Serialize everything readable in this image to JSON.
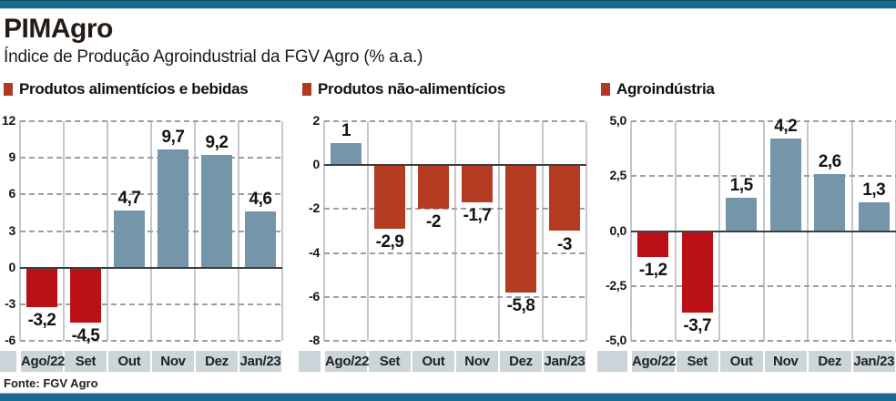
{
  "page": {
    "title": "PIMAgro",
    "subtitle": "Índice de Produção Agroindustrial da FGV Agro (% a.a.)",
    "source": "Fonte: FGV Agro",
    "accent_bar_color": "#186a8c",
    "legend_swatch_color": "#b03a21",
    "band_color": "#ccd5d9"
  },
  "chart_data": [
    {
      "type": "bar",
      "title": "Produtos alimentícios e bebidas",
      "categories": [
        "Ago/22",
        "Set",
        "Out",
        "Nov",
        "Dez",
        "Jan/23"
      ],
      "values": [
        -3.2,
        -4.5,
        4.7,
        9.7,
        9.2,
        4.6
      ],
      "value_labels": [
        "-3,2",
        "-4,5",
        "4,7",
        "9,7",
        "9,2",
        "4,6"
      ],
      "yticks": [
        12,
        9,
        6,
        3,
        0,
        -3,
        -6
      ],
      "ytick_labels": [
        "12",
        "9",
        "6",
        "3",
        "0",
        "-3",
        "-6"
      ],
      "ylim": [
        -6,
        12
      ],
      "grid": "horizontal dashed, vertical solid",
      "legend_position": "top",
      "positive_color": "#7596a8",
      "negative_color": "#bb1016"
    },
    {
      "type": "bar",
      "title": "Produtos não-alimentícios",
      "categories": [
        "Ago/22",
        "Set",
        "Out",
        "Nov",
        "Dez",
        "Jan/23"
      ],
      "values": [
        1,
        -2.9,
        -2,
        -1.7,
        -5.8,
        -3
      ],
      "value_labels": [
        "1",
        "-2,9",
        "-2",
        "-1,7",
        "-5,8",
        "-3"
      ],
      "yticks": [
        2,
        0,
        -2,
        -4,
        -6,
        -8
      ],
      "ytick_labels": [
        "2",
        "0",
        "-2",
        "-4",
        "-6",
        "-8"
      ],
      "ylim": [
        -8,
        2
      ],
      "grid": "horizontal dashed, vertical solid",
      "legend_position": "top",
      "positive_color": "#7596a8",
      "negative_color": "#b23b22"
    },
    {
      "type": "bar",
      "title": "Agroindústria",
      "categories": [
        "Ago/22",
        "Set",
        "Out",
        "Nov",
        "Dez",
        "Jan/23"
      ],
      "values": [
        -1.2,
        -3.7,
        1.5,
        4.2,
        2.6,
        1.3
      ],
      "value_labels": [
        "-1,2",
        "-3,7",
        "1,5",
        "4,2",
        "2,6",
        "1,3"
      ],
      "yticks": [
        5,
        2.5,
        0,
        -2.5,
        -5
      ],
      "ytick_labels": [
        "5,0",
        "2,5",
        "0,0",
        "-2,5",
        "-5,0"
      ],
      "ylim": [
        -5,
        5
      ],
      "grid": "horizontal dashed, vertical solid",
      "legend_position": "top",
      "positive_color": "#7596a8",
      "negative_color": "#bb1016"
    }
  ]
}
